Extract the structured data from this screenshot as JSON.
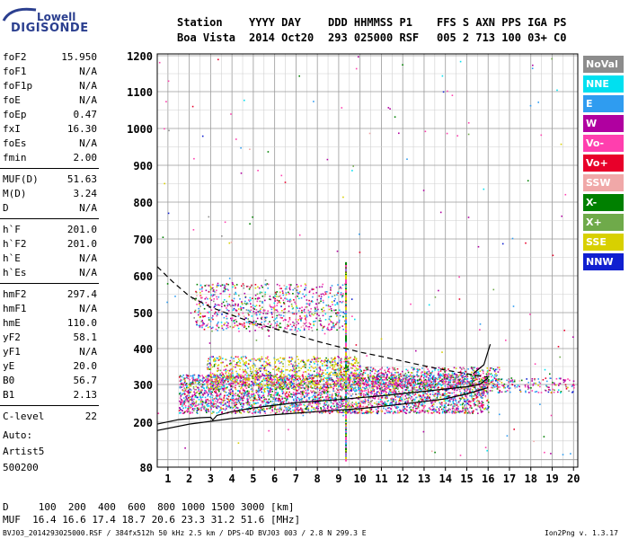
{
  "logo": {
    "top": "Lowell",
    "bottom": "DIGISONDE"
  },
  "header": {
    "row1": [
      "Station",
      "YYYY DAY",
      "DDD HHMMSS P1",
      "FFS S AXN PPS IGA PS"
    ],
    "row2": [
      "Boa Vista",
      "2014 Oct20",
      "293 025000 RSF",
      "005 2 713 100 03+ C0"
    ]
  },
  "params": {
    "group1": [
      {
        "name": "foF2",
        "value": "15.950"
      },
      {
        "name": "foF1",
        "value": "N/A"
      },
      {
        "name": "foF1p",
        "value": "N/A"
      },
      {
        "name": "foE",
        "value": "N/A"
      },
      {
        "name": "foEp",
        "value": "0.47"
      },
      {
        "name": "fxI",
        "value": "16.30"
      },
      {
        "name": "foEs",
        "value": "N/A"
      },
      {
        "name": "fmin",
        "value": "2.00"
      }
    ],
    "group2": [
      {
        "name": "MUF(D)",
        "value": "51.63"
      },
      {
        "name": "M(D)",
        "value": "3.24"
      },
      {
        "name": "D",
        "value": "N/A"
      }
    ],
    "group3": [
      {
        "name": "h`F",
        "value": "201.0"
      },
      {
        "name": "h`F2",
        "value": "201.0"
      },
      {
        "name": "h`E",
        "value": "N/A"
      },
      {
        "name": "h`Es",
        "value": "N/A"
      }
    ],
    "group4": [
      {
        "name": "hmF2",
        "value": "297.4"
      },
      {
        "name": "hmF1",
        "value": "N/A"
      },
      {
        "name": "hmE",
        "value": "110.0"
      },
      {
        "name": "yF2",
        "value": "58.1"
      },
      {
        "name": "yF1",
        "value": "N/A"
      },
      {
        "name": "yE",
        "value": "20.0"
      },
      {
        "name": "B0",
        "value": "56.7"
      },
      {
        "name": "B1",
        "value": "2.13"
      }
    ],
    "group5": [
      {
        "name": "C-level",
        "value": "22"
      }
    ]
  },
  "misc": {
    "auto": "Auto:",
    "artist": "Artist5",
    "code": "500200"
  },
  "legend": [
    {
      "label": "NoVal",
      "color": "#8c8c8c"
    },
    {
      "label": "NNE",
      "color": "#00e0f0"
    },
    {
      "label": "E",
      "color": "#2f9cf0"
    },
    {
      "label": "W",
      "color": "#b000a0"
    },
    {
      "label": "Vo-",
      "color": "#ff3fae"
    },
    {
      "label": "Vo+",
      "color": "#e8002a"
    },
    {
      "label": "SSW",
      "color": "#f0a8a8"
    },
    {
      "label": "X-",
      "color": "#008000"
    },
    {
      "label": "X+",
      "color": "#6faa4a"
    },
    {
      "label": "SSE",
      "color": "#d8d000"
    },
    {
      "label": "NNW",
      "color": "#1020d0"
    }
  ],
  "muf_table": {
    "row1": "D     100  200  400  600  800 1000 1500 3000 [km]",
    "row2": "MUF  16.4 16.6 17.4 18.7 20.6 23.3 31.2 51.6 [MHz]"
  },
  "footer": {
    "left": "BVJ03_2014293025000.RSF / 384fx512h 50 kHz 2.5 km / DPS-4D BVJ03 003 / 2.8 N 299.3 E",
    "right": "Ion2Png v. 1.3.17"
  },
  "chart_data": {
    "type": "scatter",
    "xlabel": "",
    "ylabel": "",
    "xlim": [
      0.5,
      20.2
    ],
    "ylim": [
      80,
      1210
    ],
    "x_ticks": [
      1,
      2,
      3,
      4,
      5,
      6,
      7,
      8,
      9,
      10,
      11,
      12,
      13,
      14,
      15,
      16,
      17,
      18,
      19,
      20
    ],
    "y_ticks": [
      80,
      200,
      300,
      400,
      500,
      600,
      700,
      800,
      900,
      1000,
      1100,
      1200
    ],
    "grid": true,
    "traces": [
      {
        "name": "profile",
        "style": "solid",
        "color": "#000000",
        "x": [
          0.5,
          1.5,
          2.5,
          3.0,
          3.1,
          3.3,
          4,
          5,
          6,
          7,
          8,
          9,
          10,
          11,
          12,
          13,
          14,
          15,
          15.6,
          16.0
        ],
        "y": [
          195,
          207,
          212,
          213,
          206,
          218,
          228,
          238,
          245,
          252,
          256,
          260,
          265,
          270,
          276,
          282,
          288,
          294,
          300,
          318
        ]
      },
      {
        "name": "trace-x",
        "style": "solid",
        "color": "#000000",
        "x": [
          15.3,
          15.8,
          16.1
        ],
        "y": [
          330,
          355,
          412
        ]
      },
      {
        "name": "lower",
        "style": "solid",
        "color": "#000000",
        "x": [
          0.5,
          2,
          4,
          6,
          8,
          10,
          12,
          14,
          15,
          16
        ],
        "y": [
          178,
          195,
          210,
          220,
          228,
          236,
          248,
          262,
          275,
          292
        ]
      },
      {
        "name": "dashed",
        "style": "dashed",
        "color": "#000000",
        "x": [
          0.5,
          1.2,
          2,
          3,
          4,
          5,
          6,
          7,
          8,
          9,
          10,
          11,
          12,
          13,
          14,
          15,
          16
        ],
        "y": [
          625,
          585,
          545,
          515,
          493,
          472,
          455,
          438,
          420,
          405,
          390,
          378,
          365,
          352,
          340,
          330,
          320
        ]
      }
    ],
    "point_clusters": [
      {
        "xr": [
          1.5,
          16.0
        ],
        "yr": [
          225,
          330
        ],
        "n": 3600
      },
      {
        "xr": [
          2.8,
          10.0
        ],
        "yr": [
          290,
          380
        ],
        "n": 900
      },
      {
        "xr": [
          2.2,
          9.3
        ],
        "yr": [
          450,
          580
        ],
        "n": 800
      },
      {
        "xr": [
          9.0,
          16.5
        ],
        "yr": [
          290,
          350
        ],
        "n": 700
      },
      {
        "xr": [
          16.0,
          20.0
        ],
        "yr": [
          280,
          320
        ],
        "n": 150
      },
      {
        "xr": [
          0.5,
          20.0
        ],
        "yr": [
          100,
          1200
        ],
        "n": 180
      }
    ]
  }
}
